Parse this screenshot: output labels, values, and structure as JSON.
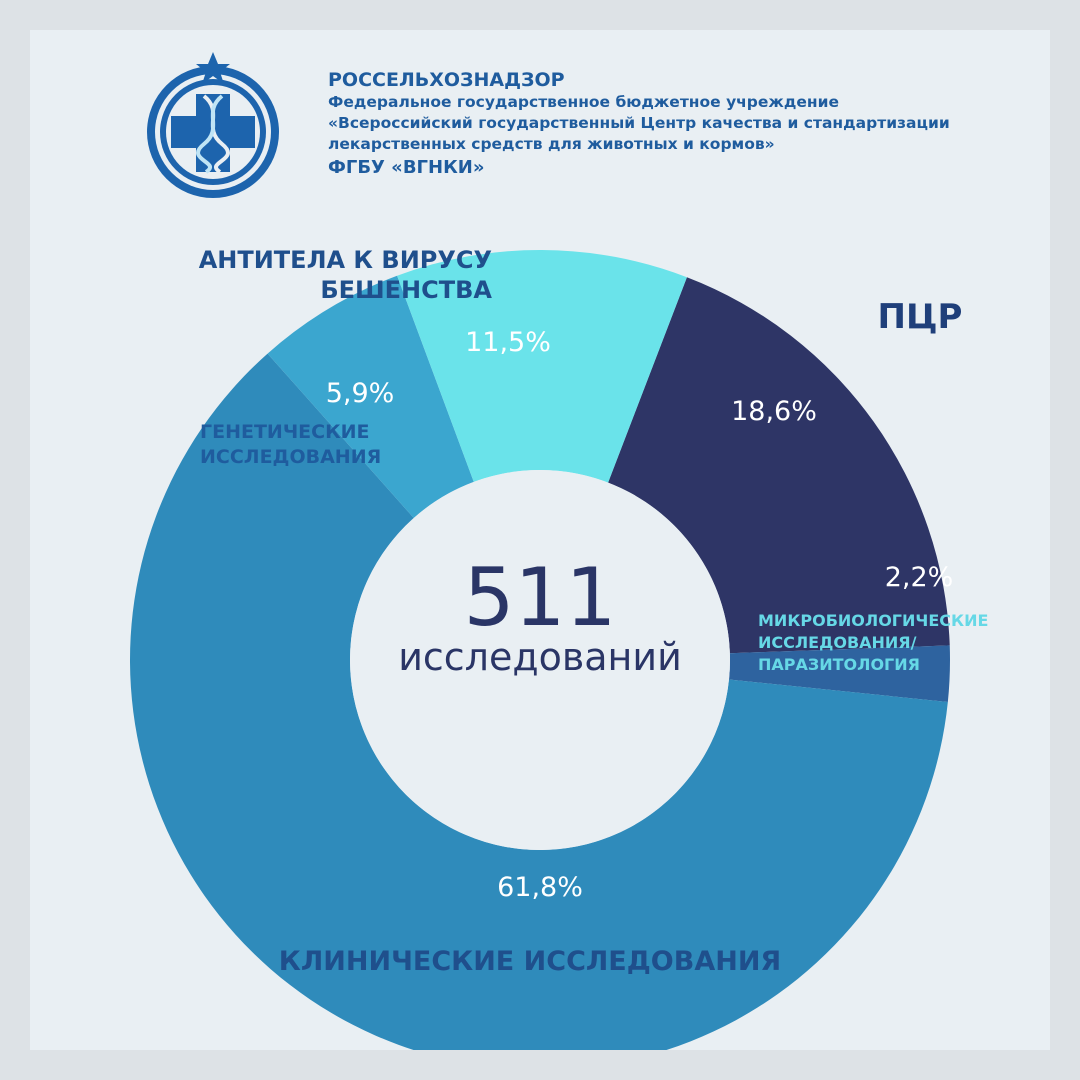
{
  "header": {
    "org_name": "РОССЕЛЬХОЗНАДЗОР",
    "lines": [
      "Федеральное государственное бюджетное учреждение",
      "«Всероссийский государственный Центр качества и стандартизации",
      "лекарственных средств для животных и кормов»"
    ],
    "short_name": "ФГБУ «ВГНКИ»"
  },
  "logo": {
    "icon": "dna-cross-emblem-icon"
  },
  "center": {
    "value": "511",
    "caption": "исследований"
  },
  "chart_data": {
    "type": "pie",
    "donut": true,
    "slices": [
      {
        "label": "ПЦР",
        "value": 18.6,
        "value_label": "18,6%",
        "color": "#2e3566",
        "label_lines": [
          "ПЦР"
        ],
        "label_color": "#1f3f7a"
      },
      {
        "label": "МИКРОБИОЛОГИЧЕСКИЕ ИССЛЕДОВАНИЯ/ ПАРАЗИТОЛОГИЯ",
        "value": 2.2,
        "value_label": "2,2%",
        "color": "#2e639f",
        "label_lines": [
          "МИКРОБИОЛОГИЧЕСКИЕ",
          "ИССЛЕДОВАНИЯ/",
          "ПАРАЗИТОЛОГИЯ"
        ],
        "label_color": "#66d8e6"
      },
      {
        "label": "КЛИНИЧЕСКИЕ ИССЛЕДОВАНИЯ",
        "value": 61.8,
        "value_label": "61,8%",
        "color": "#2f8bbb",
        "label_lines": [
          "КЛИНИЧЕСКИЕ ИССЛЕДОВАНИЯ"
        ],
        "label_color": "#1f4f8c"
      },
      {
        "label": "ГЕНЕТИЧЕСКИЕ ИССЛЕДОВАНИЯ",
        "value": 5.9,
        "value_label": "5,9%",
        "color": "#3ba6cf",
        "label_lines": [
          "ГЕНЕТИЧЕСКИЕ",
          "ИССЛЕДОВАНИЯ"
        ],
        "label_color": "#1f5c9e"
      },
      {
        "label": "АНТИТЕЛА К ВИРУСУ БЕШЕНСТВА",
        "value": 11.5,
        "value_label": "11,5%",
        "color": "#6ae3ea",
        "label_lines": [
          "АНТИТЕЛА К ВИРУСУ",
          "БЕШЕНСТВА"
        ],
        "label_color": "#1f4f8c"
      }
    ]
  }
}
